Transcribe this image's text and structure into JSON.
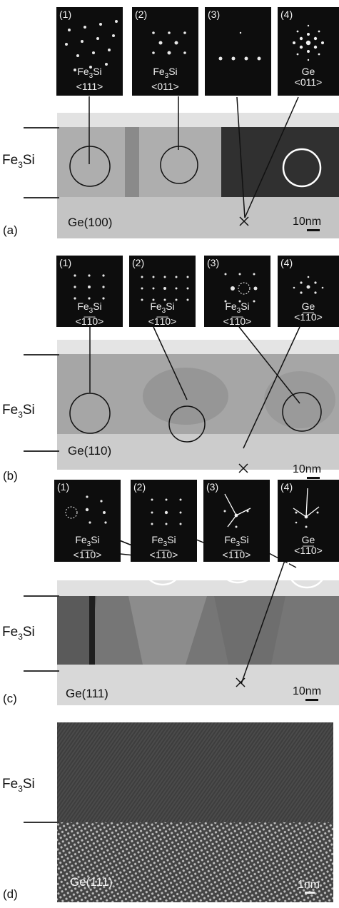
{
  "panels": [
    {
      "id": "a",
      "tag": "(a)",
      "substrate": "Ge(100)",
      "scale": "10nm",
      "film_base": "Fe",
      "film_sub": "3",
      "film_tail": "Si",
      "insets": [
        {
          "num": "(1)",
          "l1a": "Fe",
          "l1s": "3",
          "l1b": "Si",
          "l2": "<111>"
        },
        {
          "num": "(2)",
          "l1a": "Fe",
          "l1s": "3",
          "l1b": "Si",
          "l2": "<011>"
        },
        {
          "num": "(3)",
          "l1a": "",
          "l1s": "",
          "l1b": "",
          "l2": ""
        },
        {
          "num": "(4)",
          "l1a": "Ge",
          "l1s": "",
          "l1b": "",
          "l2": "<011>"
        }
      ]
    },
    {
      "id": "b",
      "tag": "(b)",
      "substrate": "Ge(110)",
      "scale": "10nm",
      "film_base": "Fe",
      "film_sub": "3",
      "film_tail": "Si",
      "insets": [
        {
          "num": "(1)",
          "l1a": "Fe",
          "l1s": "3",
          "l1b": "Si",
          "l2": "<1̅1̅0>"
        },
        {
          "num": "(2)",
          "l1a": "Fe",
          "l1s": "3",
          "l1b": "Si",
          "l2": "<1̅1̅0>"
        },
        {
          "num": "(3)",
          "l1a": "Fe",
          "l1s": "3",
          "l1b": "Si",
          "l2": "<1̅1̅0>"
        },
        {
          "num": "(4)",
          "l1a": "Ge",
          "l1s": "",
          "l1b": "",
          "l2": "<1̅1̅0>"
        }
      ]
    },
    {
      "id": "c",
      "tag": "(c)",
      "substrate": "Ge(111)",
      "scale": "10nm",
      "film_base": "Fe",
      "film_sub": "3",
      "film_tail": "Si",
      "insets": [
        {
          "num": "(1)",
          "l1a": "Fe",
          "l1s": "3",
          "l1b": "Si",
          "l2": "<1̅1̅0>"
        },
        {
          "num": "(2)",
          "l1a": "Fe",
          "l1s": "3",
          "l1b": "Si",
          "l2": "<1̅1̅0>"
        },
        {
          "num": "(3)",
          "l1a": "Fe",
          "l1s": "3",
          "l1b": "Si",
          "l2": "<1̅1̅0>"
        },
        {
          "num": "(4)",
          "l1a": "Ge",
          "l1s": "",
          "l1b": "",
          "l2": "<1̅1̅0>"
        }
      ]
    },
    {
      "id": "d",
      "tag": "(d)",
      "substrate": "Ge(111)",
      "scale": "1nm",
      "film_base": "Fe",
      "film_sub": "3",
      "film_tail": "Si"
    }
  ]
}
